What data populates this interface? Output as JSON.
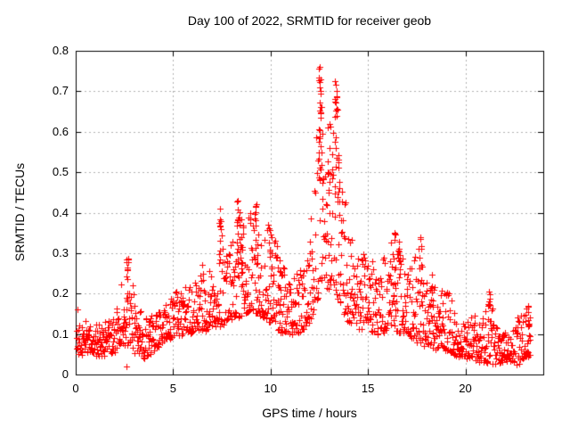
{
  "chart_data": {
    "type": "scatter",
    "title": "Day 100 of 2022, SRMTID for receiver geob",
    "xlabel": "GPS time / hours",
    "ylabel": "SRMTID / TECUs",
    "xlim": [
      0,
      24
    ],
    "ylim": [
      0,
      0.8
    ],
    "xticks": {
      "values": [
        0,
        5,
        10,
        15,
        20
      ],
      "labels": [
        "0",
        "5",
        "10",
        "15",
        "20"
      ]
    },
    "yticks": {
      "values": [
        0,
        0.1,
        0.2,
        0.3,
        0.4,
        0.5,
        0.6,
        0.7,
        0.8
      ],
      "labels": [
        "0",
        "0.1",
        "0.2",
        "0.3",
        "0.4",
        "0.5",
        "0.6",
        "0.7",
        "0.8"
      ]
    },
    "grid": {
      "show": true,
      "color": "#b0b0b0",
      "dash": [
        2,
        3
      ]
    },
    "frame_color": "#000000",
    "tick_length": 6,
    "series": [
      {
        "name": "SRMTID",
        "marker": "plus",
        "marker_size": 7,
        "color": "#ff0000",
        "seed": 42,
        "n_points": 1500,
        "t_start": 0.03,
        "t_end": 23.35,
        "skew": 1.7,
        "jitter": 0.012,
        "envelope": [
          [
            0.0,
            0.06,
            0.17
          ],
          [
            0.3,
            0.05,
            0.13
          ],
          [
            1.0,
            0.05,
            0.12
          ],
          [
            1.5,
            0.05,
            0.13
          ],
          [
            2.0,
            0.06,
            0.15
          ],
          [
            2.4,
            0.07,
            0.24
          ],
          [
            2.7,
            0.07,
            0.29
          ],
          [
            3.0,
            0.06,
            0.2
          ],
          [
            3.5,
            0.04,
            0.15
          ],
          [
            4.0,
            0.06,
            0.14
          ],
          [
            4.5,
            0.08,
            0.17
          ],
          [
            5.0,
            0.09,
            0.2
          ],
          [
            5.5,
            0.1,
            0.21
          ],
          [
            6.0,
            0.1,
            0.23
          ],
          [
            6.5,
            0.11,
            0.27
          ],
          [
            7.0,
            0.12,
            0.26
          ],
          [
            7.4,
            0.12,
            0.38
          ],
          [
            7.8,
            0.13,
            0.3
          ],
          [
            8.3,
            0.14,
            0.42
          ],
          [
            8.7,
            0.15,
            0.38
          ],
          [
            9.2,
            0.15,
            0.42
          ],
          [
            9.6,
            0.14,
            0.34
          ],
          [
            10.0,
            0.13,
            0.38
          ],
          [
            10.4,
            0.11,
            0.31
          ],
          [
            10.8,
            0.1,
            0.25
          ],
          [
            11.2,
            0.1,
            0.24
          ],
          [
            11.6,
            0.11,
            0.28
          ],
          [
            12.0,
            0.13,
            0.34
          ],
          [
            12.3,
            0.16,
            0.55
          ],
          [
            12.55,
            0.18,
            0.76
          ],
          [
            12.8,
            0.2,
            0.62
          ],
          [
            13.1,
            0.22,
            0.58
          ],
          [
            13.35,
            0.2,
            0.74
          ],
          [
            13.6,
            0.17,
            0.52
          ],
          [
            13.9,
            0.14,
            0.42
          ],
          [
            14.2,
            0.12,
            0.33
          ],
          [
            14.6,
            0.11,
            0.3
          ],
          [
            15.0,
            0.1,
            0.29
          ],
          [
            15.5,
            0.1,
            0.27
          ],
          [
            16.0,
            0.11,
            0.33
          ],
          [
            16.4,
            0.11,
            0.35
          ],
          [
            16.8,
            0.1,
            0.3
          ],
          [
            17.2,
            0.09,
            0.28
          ],
          [
            17.6,
            0.08,
            0.33
          ],
          [
            18.0,
            0.07,
            0.24
          ],
          [
            18.4,
            0.06,
            0.22
          ],
          [
            18.8,
            0.06,
            0.21
          ],
          [
            19.2,
            0.05,
            0.2
          ],
          [
            19.6,
            0.05,
            0.15
          ],
          [
            20.0,
            0.04,
            0.13
          ],
          [
            20.4,
            0.04,
            0.15
          ],
          [
            20.8,
            0.03,
            0.13
          ],
          [
            21.2,
            0.03,
            0.2
          ],
          [
            21.6,
            0.03,
            0.12
          ],
          [
            22.0,
            0.03,
            0.1
          ],
          [
            22.4,
            0.03,
            0.12
          ],
          [
            22.8,
            0.03,
            0.16
          ],
          [
            23.1,
            0.04,
            0.15
          ],
          [
            23.35,
            0.05,
            0.17
          ]
        ],
        "spikes": [
          [
            2.65,
            0.29,
            8
          ],
          [
            7.4,
            0.41,
            9
          ],
          [
            8.35,
            0.43,
            12
          ],
          [
            8.55,
            0.4,
            8
          ],
          [
            9.25,
            0.42,
            10
          ],
          [
            10.0,
            0.4,
            7
          ],
          [
            10.45,
            0.31,
            6
          ],
          [
            12.5,
            0.76,
            16
          ],
          [
            12.62,
            0.71,
            10
          ],
          [
            13.0,
            0.62,
            10
          ],
          [
            13.35,
            0.73,
            12
          ],
          [
            13.5,
            0.55,
            8
          ],
          [
            16.35,
            0.35,
            8
          ],
          [
            16.6,
            0.33,
            7
          ],
          [
            17.7,
            0.34,
            7
          ],
          [
            18.3,
            0.25,
            6
          ],
          [
            21.2,
            0.2,
            6
          ],
          [
            23.2,
            0.17,
            8
          ]
        ],
        "anchor_points": [
          [
            0.07,
            0.16
          ],
          [
            2.6,
            0.02
          ],
          [
            2.62,
            0.285
          ],
          [
            7.42,
            0.41
          ],
          [
            8.33,
            0.43
          ],
          [
            9.27,
            0.42
          ],
          [
            12.47,
            0.755
          ],
          [
            12.53,
            0.76
          ],
          [
            12.58,
            0.73
          ],
          [
            13.3,
            0.725
          ],
          [
            13.38,
            0.7
          ],
          [
            13.45,
            0.655
          ],
          [
            16.38,
            0.35
          ],
          [
            17.68,
            0.34
          ],
          [
            21.2,
            0.205
          ],
          [
            23.22,
            0.17
          ]
        ]
      }
    ]
  }
}
